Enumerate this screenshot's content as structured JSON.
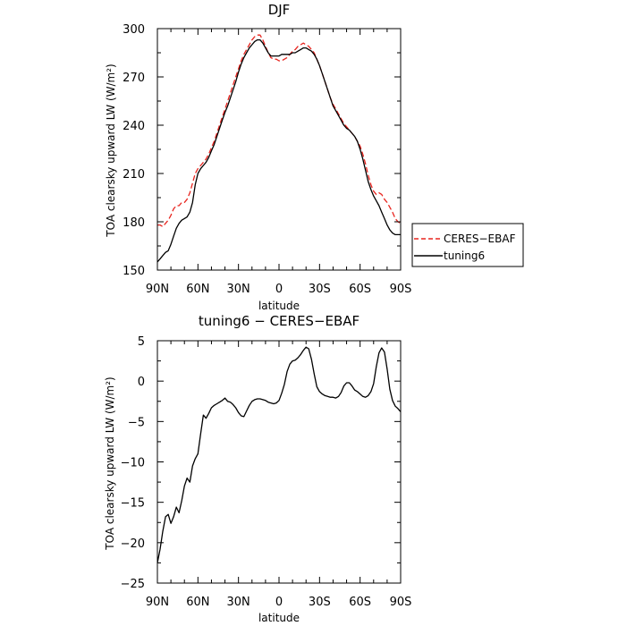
{
  "chart_data": [
    {
      "type": "line",
      "title": "DJF",
      "xlabel": "latitude",
      "ylabel": "TOA clearsky upward LW (W/m²)",
      "xlim": [
        90,
        -90
      ],
      "ylim": [
        150,
        300
      ],
      "x_ticks": [
        90,
        60,
        30,
        0,
        -30,
        -60,
        -90
      ],
      "x_tick_labels": [
        "90N",
        "60N",
        "30N",
        "0",
        "30S",
        "60S",
        "90S"
      ],
      "y_ticks": [
        150,
        180,
        210,
        240,
        270,
        300
      ],
      "y_tick_labels": [
        "150",
        "180",
        "210",
        "240",
        "270",
        "300"
      ],
      "grid": false,
      "legend_position": "outside-right",
      "series": [
        {
          "name": "CERES−EBAF",
          "color": "#e8251f",
          "dash": "dashed",
          "x": [
            90,
            88,
            86,
            84,
            82,
            80,
            78,
            76,
            74,
            72,
            70,
            68,
            66,
            64,
            62,
            60,
            58,
            56,
            54,
            52,
            50,
            48,
            46,
            44,
            42,
            40,
            38,
            36,
            34,
            32,
            30,
            28,
            26,
            24,
            22,
            20,
            18,
            16,
            14,
            12,
            10,
            8,
            6,
            4,
            2,
            0,
            -2,
            -4,
            -6,
            -8,
            -10,
            -12,
            -14,
            -16,
            -18,
            -20,
            -22,
            -24,
            -26,
            -28,
            -30,
            -32,
            -34,
            -36,
            -38,
            -40,
            -42,
            -44,
            -46,
            -48,
            -50,
            -52,
            -54,
            -56,
            -58,
            -60,
            -62,
            -64,
            -66,
            -68,
            -70,
            -72,
            -74,
            -76,
            -78,
            -80,
            -82,
            -84,
            -86,
            -88,
            -90
          ],
          "y": [
            178,
            178,
            177,
            179,
            181,
            184,
            188,
            190,
            190,
            192,
            192,
            194,
            198,
            204,
            210,
            213,
            215,
            217,
            219,
            222,
            226,
            230,
            235,
            240,
            245,
            250,
            255,
            260,
            265,
            270,
            275,
            280,
            284,
            287,
            290,
            293,
            295,
            296,
            296,
            293,
            289,
            285,
            282,
            281,
            281,
            280,
            280,
            281,
            282,
            284,
            286,
            287,
            289,
            290,
            291,
            290,
            289,
            287,
            285,
            281,
            277,
            272,
            267,
            262,
            257,
            253,
            250,
            247,
            244,
            241,
            239,
            237,
            235,
            233,
            230,
            227,
            222,
            216,
            209,
            203,
            199,
            197,
            198,
            197,
            194,
            192,
            189,
            186,
            182,
            180,
            179
          ]
        },
        {
          "name": "tuning6",
          "color": "#000000",
          "dash": "solid",
          "x": [
            90,
            88,
            86,
            84,
            82,
            80,
            78,
            76,
            74,
            72,
            70,
            68,
            66,
            64,
            62,
            60,
            58,
            56,
            54,
            52,
            50,
            48,
            46,
            44,
            42,
            40,
            38,
            36,
            34,
            32,
            30,
            28,
            26,
            24,
            22,
            20,
            18,
            16,
            14,
            12,
            10,
            8,
            6,
            4,
            2,
            0,
            -2,
            -4,
            -6,
            -8,
            -10,
            -12,
            -14,
            -16,
            -18,
            -20,
            -22,
            -24,
            -26,
            -28,
            -30,
            -32,
            -34,
            -36,
            -38,
            -40,
            -42,
            -44,
            -46,
            -48,
            -50,
            -52,
            -54,
            -56,
            -58,
            -60,
            -62,
            -64,
            -66,
            -68,
            -70,
            -72,
            -74,
            -76,
            -78,
            -80,
            -82,
            -84,
            -86,
            -88,
            -90
          ],
          "y": [
            155,
            157,
            159,
            161,
            162,
            166,
            171,
            176,
            179,
            181,
            182,
            183,
            186,
            192,
            203,
            210,
            213,
            215,
            217,
            220,
            224,
            228,
            233,
            238,
            243,
            248,
            252,
            257,
            262,
            267,
            273,
            278,
            282,
            285,
            288,
            290,
            292,
            293,
            293,
            291,
            288,
            285,
            283,
            283,
            283,
            283,
            284,
            284,
            284,
            284,
            285,
            285,
            286,
            287,
            288,
            288,
            287,
            286,
            284,
            281,
            277,
            272,
            267,
            262,
            257,
            252,
            249,
            246,
            243,
            240,
            238,
            237,
            235,
            233,
            230,
            225,
            219,
            212,
            205,
            200,
            196,
            193,
            190,
            186,
            182,
            178,
            175,
            173,
            172,
            172,
            172
          ]
        }
      ]
    },
    {
      "type": "line",
      "title": "tuning6 − CERES−EBAF",
      "xlabel": "latitude",
      "ylabel": "TOA clearsky upward LW (W/m²)",
      "xlim": [
        90,
        -90
      ],
      "ylim": [
        -25,
        5
      ],
      "x_ticks": [
        90,
        60,
        30,
        0,
        -30,
        -60,
        -90
      ],
      "x_tick_labels": [
        "90N",
        "60N",
        "30N",
        "0",
        "30S",
        "60S",
        "90S"
      ],
      "y_ticks": [
        -25,
        -20,
        -15,
        -10,
        -5,
        0,
        5
      ],
      "y_tick_labels": [
        "−25",
        "−20",
        "−15",
        "−10",
        "−5",
        "0",
        "5"
      ],
      "grid": false,
      "series": [
        {
          "color": "#000000",
          "dash": "solid",
          "x": [
            90,
            88,
            86,
            84,
            82,
            80,
            78,
            76,
            74,
            72,
            70,
            68,
            66,
            64,
            62,
            60,
            58,
            56,
            54,
            52,
            50,
            48,
            46,
            44,
            42,
            40,
            38,
            36,
            34,
            32,
            30,
            28,
            26,
            24,
            22,
            20,
            18,
            16,
            14,
            12,
            10,
            8,
            6,
            4,
            2,
            0,
            -2,
            -4,
            -6,
            -8,
            -10,
            -12,
            -14,
            -16,
            -18,
            -20,
            -22,
            -24,
            -26,
            -28,
            -30,
            -32,
            -34,
            -36,
            -38,
            -40,
            -42,
            -44,
            -46,
            -48,
            -50,
            -52,
            -54,
            -56,
            -58,
            -60,
            -62,
            -64,
            -66,
            -68,
            -70,
            -72,
            -74,
            -76,
            -78,
            -80,
            -82,
            -84,
            -86,
            -88,
            -90
          ],
          "y": [
            -22.5,
            -20.8,
            -18.6,
            -16.8,
            -16.5,
            -17.6,
            -16.8,
            -15.6,
            -16.3,
            -14.8,
            -13.0,
            -12.0,
            -12.5,
            -10.5,
            -9.6,
            -9.0,
            -6.5,
            -4.2,
            -4.6,
            -4.0,
            -3.3,
            -3.0,
            -2.8,
            -2.6,
            -2.4,
            -2.1,
            -2.5,
            -2.6,
            -2.9,
            -3.3,
            -3.9,
            -4.3,
            -4.4,
            -3.7,
            -3.0,
            -2.5,
            -2.3,
            -2.2,
            -2.2,
            -2.3,
            -2.4,
            -2.6,
            -2.7,
            -2.8,
            -2.7,
            -2.4,
            -1.5,
            -0.4,
            1.2,
            2.1,
            2.5,
            2.6,
            2.9,
            3.3,
            3.8,
            4.2,
            4.0,
            2.7,
            0.9,
            -0.7,
            -1.3,
            -1.6,
            -1.8,
            -1.9,
            -2.0,
            -2.0,
            -2.1,
            -1.9,
            -1.4,
            -0.6,
            -0.2,
            -0.2,
            -0.6,
            -1.1,
            -1.3,
            -1.6,
            -1.9,
            -2.0,
            -1.8,
            -1.3,
            -0.3,
            1.8,
            3.5,
            4.1,
            3.6,
            1.5,
            -1.0,
            -2.4,
            -3.1,
            -3.4,
            -3.8
          ]
        }
      ]
    }
  ]
}
